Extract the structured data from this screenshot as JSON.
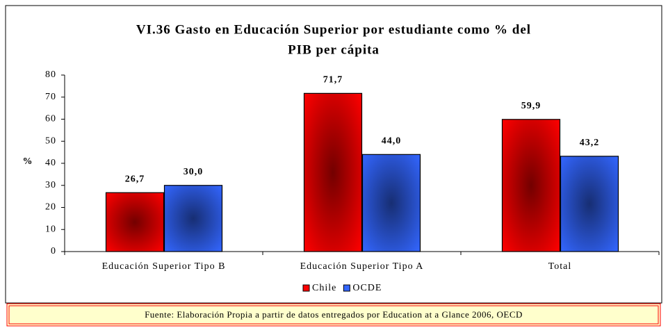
{
  "chart_data": {
    "type": "bar",
    "title": [
      "VI.36 Gasto en Educación Superior por estudiante como % del",
      "PIB per cápita"
    ],
    "y_label": "%",
    "categories": [
      "Educación Superior Tipo B",
      "Educación Superior Tipo A",
      "Total"
    ],
    "series": [
      {
        "name": "Chile",
        "color": "#ff0000",
        "values": [
          26.7,
          71.7,
          59.9
        ],
        "value_labels": [
          "26,7",
          "71,7",
          "59,9"
        ]
      },
      {
        "name": "OCDE",
        "color": "#3366ff",
        "values": [
          30.0,
          44.0,
          43.2
        ],
        "value_labels": [
          "30,0",
          "44,0",
          "43,2"
        ]
      }
    ],
    "ylim": [
      0,
      80
    ],
    "yticks": [
      0,
      10,
      20,
      30,
      40,
      50,
      60,
      70,
      80
    ],
    "legend": "bottom"
  },
  "source": "Fuente: Elaboración Propia a partir de datos entregados por Education at a Glance 2006, OECD"
}
